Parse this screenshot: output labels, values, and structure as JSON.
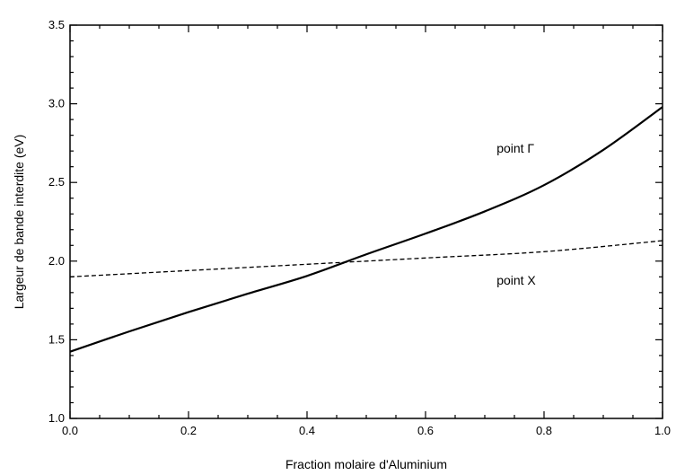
{
  "chart_data": {
    "type": "line",
    "title": "",
    "xlabel": "Fraction molaire d'Aluminium",
    "ylabel": "Largeur de bande interdite (eV)",
    "xlim": [
      0.0,
      1.0
    ],
    "ylim": [
      1.0,
      3.5
    ],
    "x_ticks": [
      0.0,
      0.2,
      0.4,
      0.6,
      0.8,
      1.0
    ],
    "x_tick_labels": [
      "0.0",
      "0.2",
      "0.4",
      "0.6",
      "0.8",
      "1.0"
    ],
    "y_ticks": [
      1.0,
      1.5,
      2.0,
      2.5,
      3.0,
      3.5
    ],
    "y_tick_labels": [
      "1.0",
      "1.5",
      "2.0",
      "2.5",
      "3.0",
      "3.5"
    ],
    "grid": false,
    "legend": "none",
    "series": [
      {
        "style": "solid",
        "x": [
          0.0,
          0.1,
          0.2,
          0.3,
          0.4,
          0.5,
          0.6,
          0.7,
          0.8,
          0.9,
          1.0
        ],
        "y": [
          1.424,
          1.553,
          1.676,
          1.793,
          1.906,
          2.043,
          2.175,
          2.316,
          2.483,
          2.707,
          2.98
        ]
      },
      {
        "style": "dashed",
        "x": [
          0.0,
          0.2,
          0.4,
          0.6,
          0.8,
          1.0
        ],
        "y": [
          1.9,
          1.94,
          1.98,
          2.02,
          2.06,
          2.13
        ]
      }
    ],
    "annotations": [
      {
        "text": "point Γ",
        "x": 0.72,
        "y": 2.69
      },
      {
        "text": "point X",
        "x": 0.72,
        "y": 1.85
      }
    ]
  }
}
